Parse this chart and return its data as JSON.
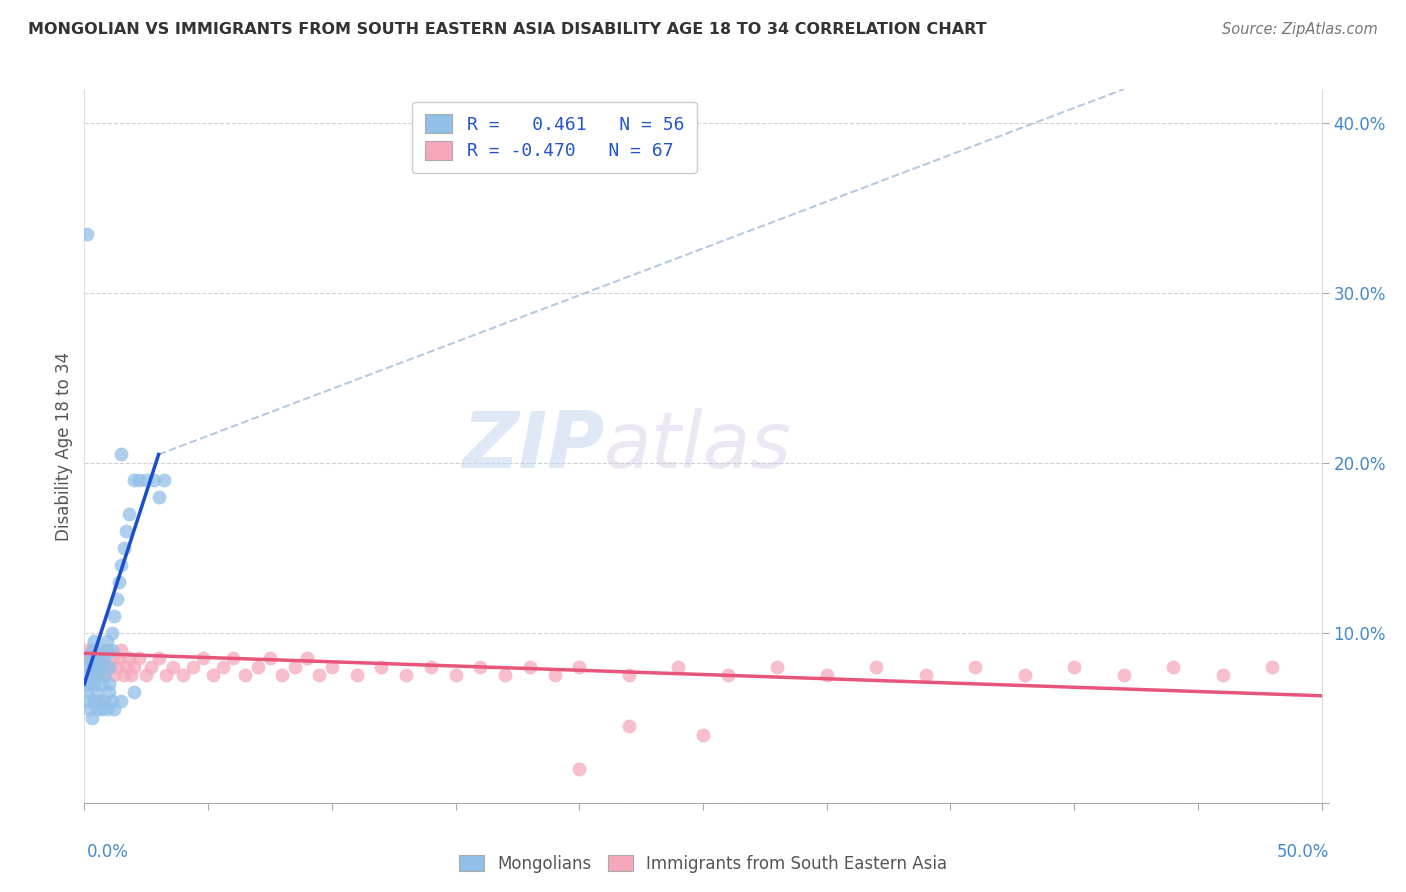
{
  "title": "MONGOLIAN VS IMMIGRANTS FROM SOUTH EASTERN ASIA DISABILITY AGE 18 TO 34 CORRELATION CHART",
  "source": "Source: ZipAtlas.com",
  "ylabel": "Disability Age 18 to 34",
  "x_min": 0.0,
  "x_max": 0.5,
  "y_min": 0.0,
  "y_max": 0.42,
  "color_mongolian": "#92c0e8",
  "color_sea": "#f5a8bc",
  "color_line1": "#1a4fcc",
  "color_line2": "#e8557a",
  "color_dash": "#b0c4de",
  "watermark_zip": "ZIP",
  "watermark_atlas": "atlas",
  "mongolian_x": [
    0.001,
    0.001,
    0.001,
    0.002,
    0.002,
    0.002,
    0.003,
    0.003,
    0.003,
    0.004,
    0.004,
    0.004,
    0.005,
    0.005,
    0.005,
    0.006,
    0.006,
    0.007,
    0.007,
    0.008,
    0.008,
    0.009,
    0.009,
    0.01,
    0.01,
    0.011,
    0.011,
    0.012,
    0.013,
    0.014,
    0.015,
    0.016,
    0.017,
    0.018,
    0.02,
    0.022,
    0.025,
    0.028,
    0.03,
    0.032,
    0.001,
    0.002,
    0.003,
    0.004,
    0.005,
    0.006,
    0.007,
    0.008,
    0.009,
    0.01,
    0.011,
    0.012,
    0.015,
    0.02,
    0.015,
    0.001
  ],
  "mongolian_y": [
    0.07,
    0.075,
    0.065,
    0.08,
    0.085,
    0.07,
    0.09,
    0.08,
    0.075,
    0.085,
    0.095,
    0.07,
    0.08,
    0.065,
    0.075,
    0.085,
    0.09,
    0.07,
    0.08,
    0.075,
    0.085,
    0.09,
    0.095,
    0.07,
    0.08,
    0.09,
    0.1,
    0.11,
    0.12,
    0.13,
    0.14,
    0.15,
    0.16,
    0.17,
    0.19,
    0.19,
    0.19,
    0.19,
    0.18,
    0.19,
    0.06,
    0.055,
    0.05,
    0.06,
    0.055,
    0.06,
    0.055,
    0.06,
    0.055,
    0.065,
    0.06,
    0.055,
    0.06,
    0.065,
    0.205,
    0.335
  ],
  "sea_x": [
    0.001,
    0.002,
    0.003,
    0.004,
    0.005,
    0.006,
    0.007,
    0.008,
    0.009,
    0.01,
    0.011,
    0.012,
    0.013,
    0.014,
    0.015,
    0.016,
    0.017,
    0.018,
    0.019,
    0.02,
    0.022,
    0.025,
    0.027,
    0.03,
    0.033,
    0.036,
    0.04,
    0.044,
    0.048,
    0.052,
    0.056,
    0.06,
    0.065,
    0.07,
    0.075,
    0.08,
    0.085,
    0.09,
    0.095,
    0.1,
    0.11,
    0.12,
    0.13,
    0.14,
    0.15,
    0.16,
    0.17,
    0.18,
    0.19,
    0.2,
    0.22,
    0.24,
    0.26,
    0.28,
    0.3,
    0.32,
    0.34,
    0.36,
    0.38,
    0.4,
    0.42,
    0.44,
    0.46,
    0.48,
    0.25,
    0.22,
    0.2
  ],
  "sea_y": [
    0.09,
    0.085,
    0.08,
    0.09,
    0.085,
    0.08,
    0.085,
    0.075,
    0.09,
    0.08,
    0.085,
    0.075,
    0.08,
    0.085,
    0.09,
    0.075,
    0.08,
    0.085,
    0.075,
    0.08,
    0.085,
    0.075,
    0.08,
    0.085,
    0.075,
    0.08,
    0.075,
    0.08,
    0.085,
    0.075,
    0.08,
    0.085,
    0.075,
    0.08,
    0.085,
    0.075,
    0.08,
    0.085,
    0.075,
    0.08,
    0.075,
    0.08,
    0.075,
    0.08,
    0.075,
    0.08,
    0.075,
    0.08,
    0.075,
    0.08,
    0.075,
    0.08,
    0.075,
    0.08,
    0.075,
    0.08,
    0.075,
    0.08,
    0.075,
    0.08,
    0.075,
    0.08,
    0.075,
    0.08,
    0.04,
    0.045,
    0.02
  ],
  "blue_line_x": [
    0.0,
    0.03
  ],
  "blue_line_y": [
    0.07,
    0.205
  ],
  "dash_line_x": [
    0.03,
    0.42
  ],
  "dash_line_y": [
    0.205,
    0.42
  ],
  "pink_line_x": [
    0.0,
    0.5
  ],
  "pink_line_y": [
    0.088,
    0.063
  ]
}
